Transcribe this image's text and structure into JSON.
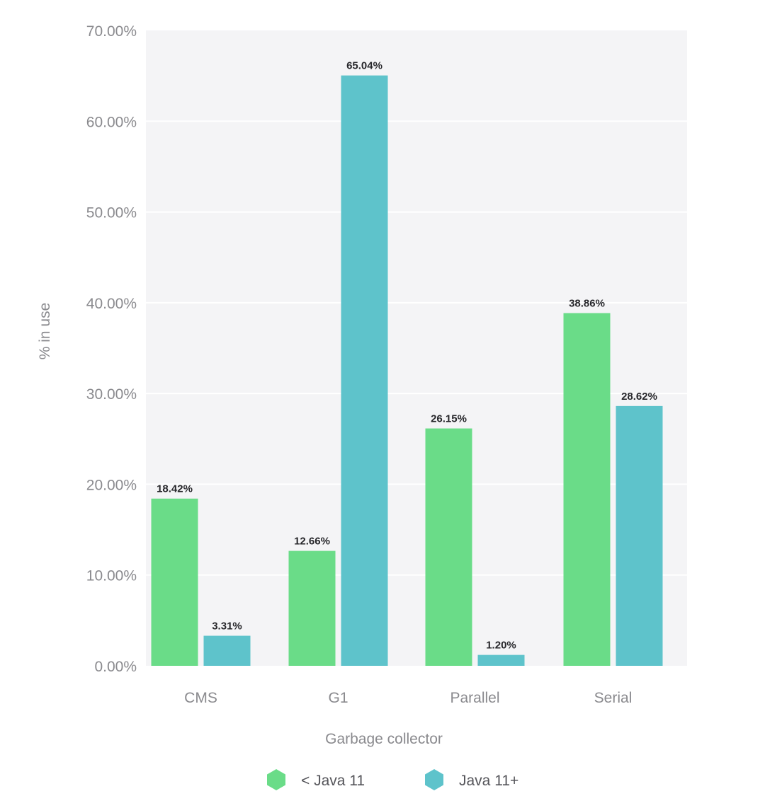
{
  "chart_data": {
    "type": "bar",
    "xlabel": "Garbage collector",
    "ylabel": "% in use",
    "ylim": [
      0,
      70
    ],
    "yticks": [
      "0.00%",
      "10.00%",
      "20.00%",
      "30.00%",
      "40.00%",
      "50.00%",
      "60.00%",
      "70.00%"
    ],
    "categories": [
      "CMS",
      "G1",
      "Parallel",
      "Serial"
    ],
    "series": [
      {
        "name": "< Java 11",
        "color": "#6adc88",
        "values": [
          18.42,
          12.66,
          26.15,
          38.86
        ],
        "labels": [
          "18.42%",
          "12.66%",
          "26.15%",
          "38.86%"
        ]
      },
      {
        "name": "Java 11+",
        "color": "#5ec3cb",
        "values": [
          3.31,
          65.04,
          1.2,
          28.62
        ],
        "labels": [
          "3.31%",
          "65.04%",
          "1.20%",
          "28.62%"
        ]
      }
    ],
    "grid": true,
    "plot_background": "#f4f4f6",
    "legend": "bottom-center"
  }
}
